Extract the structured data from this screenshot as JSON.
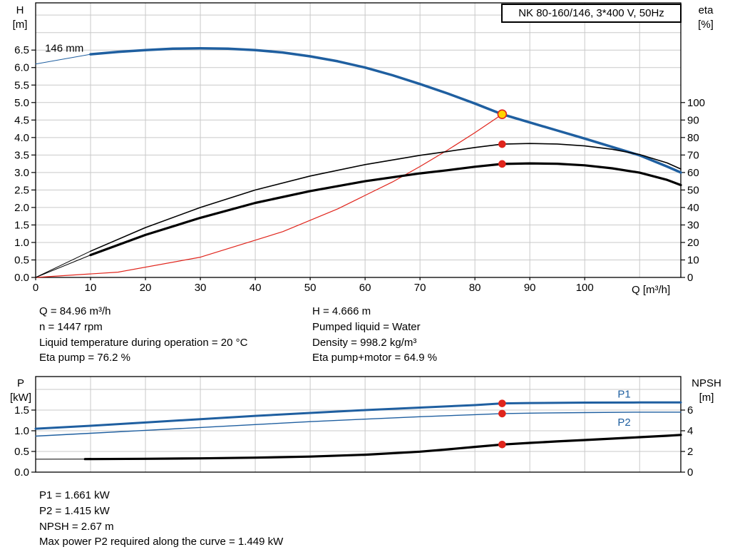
{
  "title_box": {
    "text": "NK 80-160/146, 3*400 V, 50Hz"
  },
  "info_top_left": [
    "Q = 84.96 m³/h",
    "n = 1447 rpm",
    "Liquid temperature during operation = 20 °C",
    "Eta pump = 76.2 %"
  ],
  "info_top_right": [
    "H = 4.666 m",
    "Pumped liquid = Water",
    "Density = 998.2 kg/m³",
    "Eta pump+motor = 64.9 %"
  ],
  "info_bottom": [
    "P1 = 1.661 kW",
    "P2 = 1.415 kW",
    "NPSH = 2.67 m",
    "Max power P2 required along the curve = 1.449 kW"
  ],
  "colors": {
    "curve_blue": "#1f5fa0",
    "curve_red": "#e0251c",
    "duty_yellow": "#ffd400",
    "grid_gray": "#c9c9c9"
  },
  "chart_data": [
    {
      "id": "qh",
      "name": "qh-eta-chart",
      "type": "line",
      "x": {
        "label": "Q [m³/h]",
        "min": 0,
        "max": 117.5,
        "ticks": [
          0,
          10,
          20,
          30,
          40,
          50,
          60,
          70,
          80,
          90,
          100
        ],
        "grid": [
          10,
          20,
          30,
          40,
          50,
          60,
          70,
          80,
          90,
          100,
          110
        ],
        "decimals": 0,
        "show_labels": true
      },
      "y_left": {
        "label": [
          "H",
          "[m]"
        ],
        "min": 0,
        "max": 7.85,
        "ticks": [
          0,
          0.5,
          1,
          1.5,
          2,
          2.5,
          3,
          3.5,
          4,
          4.5,
          5,
          5.5,
          6,
          6.5
        ],
        "grid": [
          0.5,
          1,
          1.5,
          2,
          2.5,
          3,
          3.5,
          4,
          4.5,
          5,
          5.5,
          6,
          6.5,
          7,
          7.5
        ],
        "decimals": 1
      },
      "y_right": {
        "label": [
          "eta",
          "[%]"
        ],
        "min": 0,
        "max": 157,
        "ticks": [
          0,
          10,
          20,
          30,
          40,
          50,
          60,
          70,
          80,
          90,
          100
        ],
        "decimals": 0
      },
      "series": [
        {
          "name": "impeller-146mm-lead",
          "axis": "left",
          "color": "#1f5fa0",
          "width": 1,
          "points": [
            [
              0,
              6.1
            ],
            [
              10,
              6.38
            ]
          ]
        },
        {
          "name": "impeller-146mm-curve",
          "axis": "left",
          "color": "#1f5fa0",
          "width": 3.5,
          "points": [
            [
              10,
              6.38
            ],
            [
              15,
              6.45
            ],
            [
              20,
              6.5
            ],
            [
              25,
              6.54
            ],
            [
              30,
              6.55
            ],
            [
              35,
              6.54
            ],
            [
              40,
              6.5
            ],
            [
              45,
              6.43
            ],
            [
              50,
              6.32
            ],
            [
              55,
              6.18
            ],
            [
              60,
              6.0
            ],
            [
              65,
              5.78
            ],
            [
              70,
              5.53
            ],
            [
              75,
              5.26
            ],
            [
              80,
              4.97
            ],
            [
              84.96,
              4.666
            ],
            [
              90,
              4.43
            ],
            [
              95,
              4.2
            ],
            [
              100,
              3.97
            ],
            [
              105,
              3.73
            ],
            [
              110,
              3.49
            ],
            [
              115,
              3.17
            ],
            [
              117.5,
              3.0
            ]
          ]
        },
        {
          "name": "system-curve",
          "axis": "left",
          "color": "#e0251c",
          "width": 1.2,
          "points": [
            [
              0,
              0
            ],
            [
              15,
              0.15
            ],
            [
              30,
              0.58
            ],
            [
              45,
              1.31
            ],
            [
              55,
              1.96
            ],
            [
              65,
              2.73
            ],
            [
              70,
              3.17
            ],
            [
              75,
              3.64
            ],
            [
              80,
              4.14
            ],
            [
              84.96,
              4.666
            ]
          ]
        },
        {
          "name": "eta-pump-lead",
          "axis": "right",
          "color": "#000000",
          "width": 1,
          "points": [
            [
              0,
              0
            ],
            [
              10,
              15
            ]
          ]
        },
        {
          "name": "eta-pump-curve",
          "axis": "right",
          "color": "#000000",
          "width": 1.6,
          "points": [
            [
              10,
              15
            ],
            [
              20,
              28.5
            ],
            [
              30,
              40
            ],
            [
              40,
              50
            ],
            [
              50,
              58
            ],
            [
              60,
              64.5
            ],
            [
              70,
              69.8
            ],
            [
              75,
              72
            ],
            [
              80,
              74.3
            ],
            [
              84.96,
              76.2
            ],
            [
              90,
              76.6
            ],
            [
              95,
              76.3
            ],
            [
              100,
              75.2
            ],
            [
              105,
              73.3
            ],
            [
              110,
              70.3
            ],
            [
              115,
              65.5
            ],
            [
              117.5,
              62
            ]
          ]
        },
        {
          "name": "eta-pump-motor-lead",
          "axis": "right",
          "color": "#000000",
          "width": 1,
          "points": [
            [
              0,
              0
            ],
            [
              10,
              12.8
            ]
          ]
        },
        {
          "name": "eta-pump-motor-curve",
          "axis": "right",
          "color": "#000000",
          "width": 3.2,
          "points": [
            [
              10,
              12.8
            ],
            [
              20,
              24.3
            ],
            [
              30,
              34.1
            ],
            [
              40,
              42.6
            ],
            [
              50,
              49.4
            ],
            [
              60,
              55.0
            ],
            [
              70,
              59.5
            ],
            [
              75,
              61.3
            ],
            [
              80,
              63.3
            ],
            [
              84.96,
              64.9
            ],
            [
              90,
              65.2
            ],
            [
              95,
              65.0
            ],
            [
              100,
              64.1
            ],
            [
              105,
              62.4
            ],
            [
              110,
              59.9
            ],
            [
              115,
              55.8
            ],
            [
              117.5,
              52.8
            ]
          ]
        }
      ],
      "markers": [
        {
          "name": "duty-point",
          "x": 84.96,
          "y": 4.666,
          "axis": "left",
          "fill": "#ffd400",
          "stroke": "#e0251c",
          "r": 6
        },
        {
          "name": "eta-pump-duty-point",
          "x": 84.96,
          "y": 76.2,
          "axis": "right",
          "fill": "#e0251c",
          "stroke": "#e0251c",
          "r": 4.5
        },
        {
          "name": "eta-pump-motor-duty-point",
          "x": 84.96,
          "y": 64.9,
          "axis": "right",
          "fill": "#e0251c",
          "stroke": "#e0251c",
          "r": 4.5
        }
      ],
      "annotations": [
        {
          "name": "impeller-diameter-label",
          "text": "146 mm",
          "x": 1.7,
          "y": 6.45,
          "axis": "left",
          "color": "#000000"
        }
      ]
    },
    {
      "id": "power",
      "name": "power-npsh-chart",
      "type": "line",
      "x": {
        "label": "",
        "min": 0,
        "max": 117.5,
        "ticks": [],
        "grid": [
          10,
          20,
          30,
          40,
          50,
          60,
          70,
          80,
          90,
          100,
          110
        ],
        "decimals": 0,
        "show_labels": false
      },
      "y_left": {
        "label": [
          "P",
          "[kW]"
        ],
        "min": 0,
        "max": 2.31,
        "ticks": [
          0,
          0.5,
          1,
          1.5
        ],
        "grid": [
          0.5,
          1,
          1.5,
          2
        ],
        "decimals": 1
      },
      "y_right": {
        "label": [
          "NPSH",
          "[m]"
        ],
        "min": 0,
        "max": 9.24,
        "ticks": [
          0,
          2,
          4,
          6
        ],
        "decimals": 0
      },
      "series": [
        {
          "name": "p1-curve",
          "axis": "left",
          "color": "#1f5fa0",
          "width": 3,
          "points": [
            [
              0,
              1.05
            ],
            [
              10,
              1.12
            ],
            [
              20,
              1.2
            ],
            [
              30,
              1.28
            ],
            [
              40,
              1.36
            ],
            [
              50,
              1.43
            ],
            [
              60,
              1.5
            ],
            [
              70,
              1.56
            ],
            [
              80,
              1.62
            ],
            [
              84.96,
              1.661
            ],
            [
              90,
              1.67
            ],
            [
              100,
              1.68
            ],
            [
              110,
              1.685
            ],
            [
              117.5,
              1.685
            ]
          ]
        },
        {
          "name": "p2-curve",
          "axis": "left",
          "color": "#1f5fa0",
          "width": 1.4,
          "points": [
            [
              0,
              0.87
            ],
            [
              10,
              0.94
            ],
            [
              20,
              1.01
            ],
            [
              30,
              1.08
            ],
            [
              40,
              1.15
            ],
            [
              50,
              1.22
            ],
            [
              60,
              1.28
            ],
            [
              70,
              1.34
            ],
            [
              80,
              1.39
            ],
            [
              84.96,
              1.415
            ],
            [
              90,
              1.425
            ],
            [
              100,
              1.44
            ],
            [
              110,
              1.449
            ],
            [
              117.5,
              1.449
            ]
          ]
        },
        {
          "name": "npsh-lead",
          "axis": "right",
          "color": "#000000",
          "width": 1,
          "points": [
            [
              0,
              1.25
            ],
            [
              9,
              1.26
            ]
          ]
        },
        {
          "name": "npsh-curve",
          "axis": "right",
          "color": "#000000",
          "width": 3.2,
          "points": [
            [
              9,
              1.26
            ],
            [
              20,
              1.29
            ],
            [
              30,
              1.33
            ],
            [
              40,
              1.4
            ],
            [
              50,
              1.5
            ],
            [
              60,
              1.68
            ],
            [
              70,
              1.98
            ],
            [
              75,
              2.2
            ],
            [
              80,
              2.44
            ],
            [
              84.96,
              2.67
            ],
            [
              90,
              2.83
            ],
            [
              95,
              2.97
            ],
            [
              100,
              3.1
            ],
            [
              105,
              3.24
            ],
            [
              110,
              3.38
            ],
            [
              115,
              3.52
            ],
            [
              117.5,
              3.6
            ]
          ]
        }
      ],
      "markers": [
        {
          "name": "p1-duty-point",
          "x": 84.96,
          "y": 1.661,
          "axis": "left",
          "fill": "#e0251c",
          "stroke": "#e0251c",
          "r": 4.5
        },
        {
          "name": "p2-duty-point",
          "x": 84.96,
          "y": 1.415,
          "axis": "left",
          "fill": "#e0251c",
          "stroke": "#e0251c",
          "r": 4.5
        },
        {
          "name": "npsh-duty-point",
          "x": 84.96,
          "y": 2.67,
          "axis": "right",
          "fill": "#e0251c",
          "stroke": "#e0251c",
          "r": 4.5
        }
      ],
      "annotations": [
        {
          "name": "p1-curve-label",
          "text": "P1",
          "x": 106,
          "y": 1.8,
          "axis": "left",
          "color": "#1f5fa0"
        },
        {
          "name": "p2-curve-label",
          "text": "P2",
          "x": 106,
          "y": 1.12,
          "axis": "left",
          "color": "#1f5fa0"
        }
      ]
    }
  ]
}
